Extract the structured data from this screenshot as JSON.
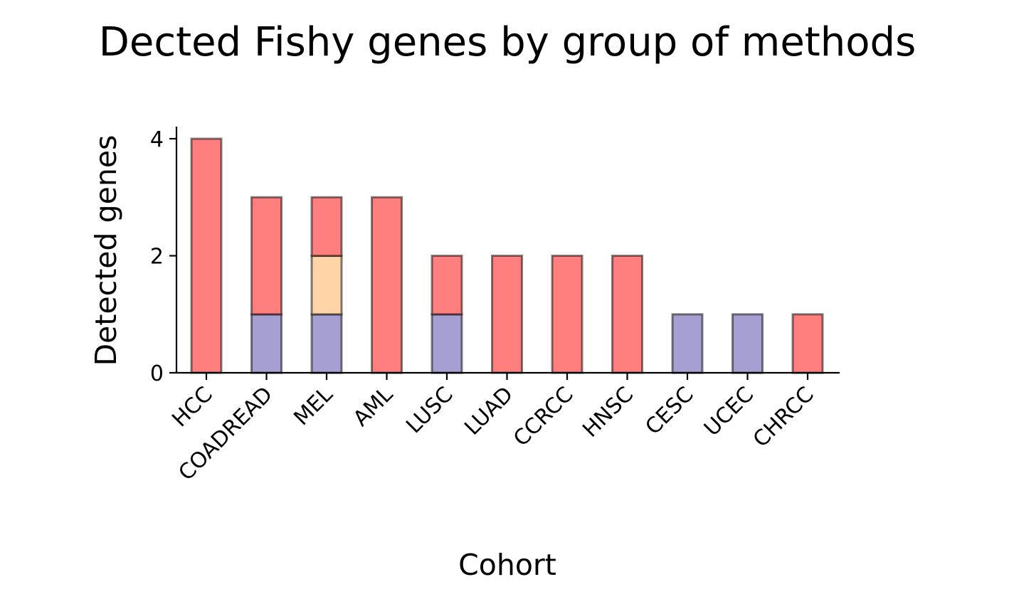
{
  "chart_data": {
    "type": "bar",
    "stacked": true,
    "title": "Dected Fishy genes by group of methods",
    "xlabel": "Cohort",
    "ylabel": "Detected genes",
    "ylim": [
      0,
      4.2
    ],
    "yticks": [
      0,
      2,
      4
    ],
    "grid": false,
    "legend": "none",
    "categories": [
      "HCC",
      "COADREAD",
      "MEL",
      "AML",
      "LUSC",
      "LUAD",
      "CCRCC",
      "HNSC",
      "CESC",
      "UCEC",
      "CHRCC"
    ],
    "series": [
      {
        "color": "#a6a0d2",
        "values": [
          0,
          1,
          1,
          0,
          1,
          0,
          0,
          0,
          1,
          1,
          0
        ]
      },
      {
        "color": "#ffd4a6",
        "values": [
          0,
          0,
          1,
          0,
          0,
          0,
          0,
          0,
          0,
          0,
          0
        ]
      },
      {
        "color": "#ff7f7f",
        "values": [
          4,
          2,
          1,
          3,
          1,
          2,
          2,
          2,
          0,
          0,
          1
        ]
      }
    ]
  }
}
